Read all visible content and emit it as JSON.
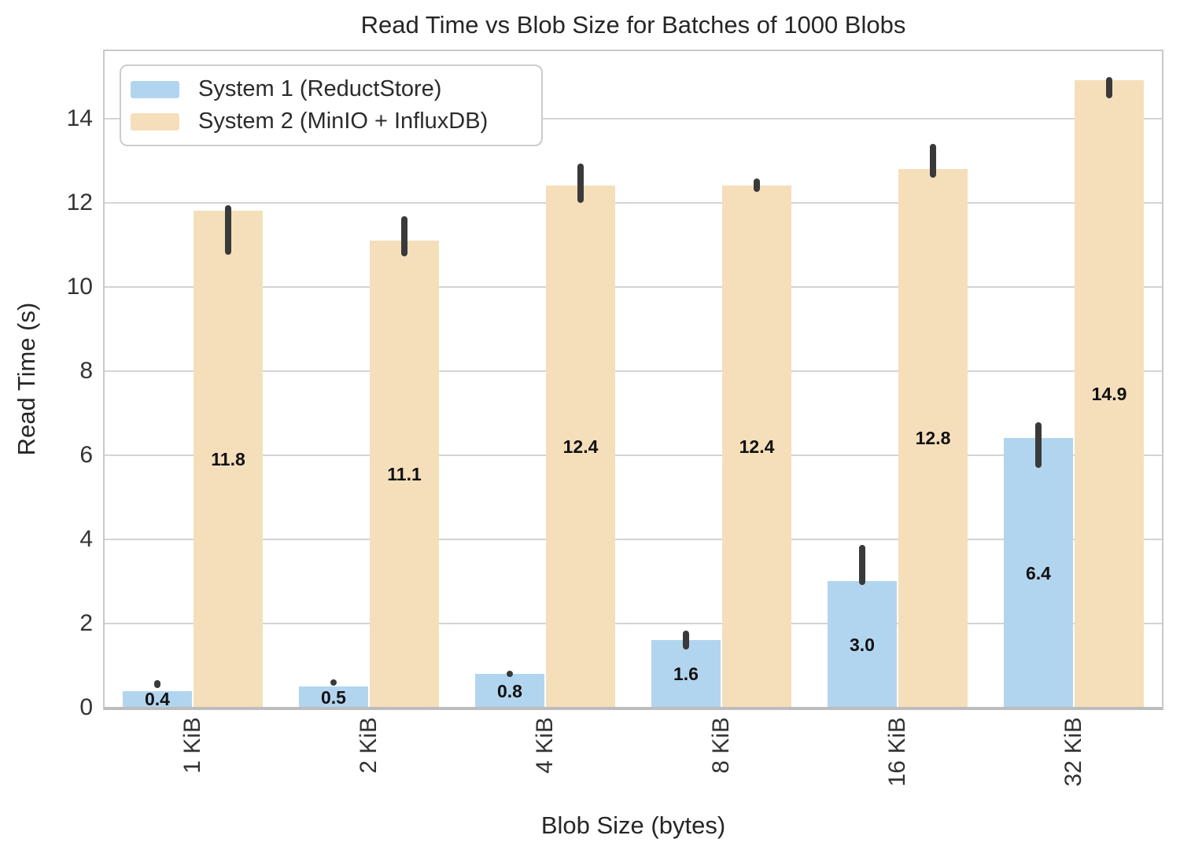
{
  "chart_data": {
    "type": "bar",
    "title": "Read Time vs Blob Size for Batches of 1000 Blobs",
    "xlabel": "Blob Size (bytes)",
    "ylabel": "Read Time (s)",
    "categories": [
      "1 KiB",
      "2 KiB",
      "4 KiB",
      "8 KiB",
      "16 KiB",
      "32 KiB"
    ],
    "yticks": [
      0,
      2,
      4,
      6,
      8,
      10,
      12,
      14
    ],
    "ylim": [
      0,
      15.6
    ],
    "grid": "horizontal",
    "legend_position": "upper-left",
    "error_color": "#3a3a3a",
    "series": [
      {
        "name": "System 1 (ReductStore)",
        "color": "#b2d5ef",
        "values": [
          0.4,
          0.5,
          0.8,
          1.6,
          3.0,
          6.4
        ],
        "labels": [
          "0.4",
          "0.5",
          "0.8",
          "1.6",
          "3.0",
          "6.4"
        ],
        "error_ranges": [
          [
            0.47,
            0.66
          ],
          [
            0.52,
            0.66
          ],
          [
            0.73,
            0.87
          ],
          [
            1.38,
            1.83
          ],
          [
            2.92,
            3.87
          ],
          [
            5.7,
            6.79
          ]
        ]
      },
      {
        "name": "System 2 (MinIO + InfluxDB)",
        "color": "#f5dfba",
        "values": [
          11.8,
          11.1,
          12.4,
          12.4,
          12.8,
          14.9
        ],
        "labels": [
          "11.8",
          "11.1",
          "12.4",
          "12.4",
          "12.8",
          "14.9"
        ],
        "error_ranges": [
          [
            10.77,
            11.94
          ],
          [
            10.73,
            11.68
          ],
          [
            12.0,
            12.93
          ],
          [
            12.26,
            12.58
          ],
          [
            12.6,
            13.4
          ],
          [
            14.47,
            14.99
          ]
        ]
      }
    ]
  }
}
